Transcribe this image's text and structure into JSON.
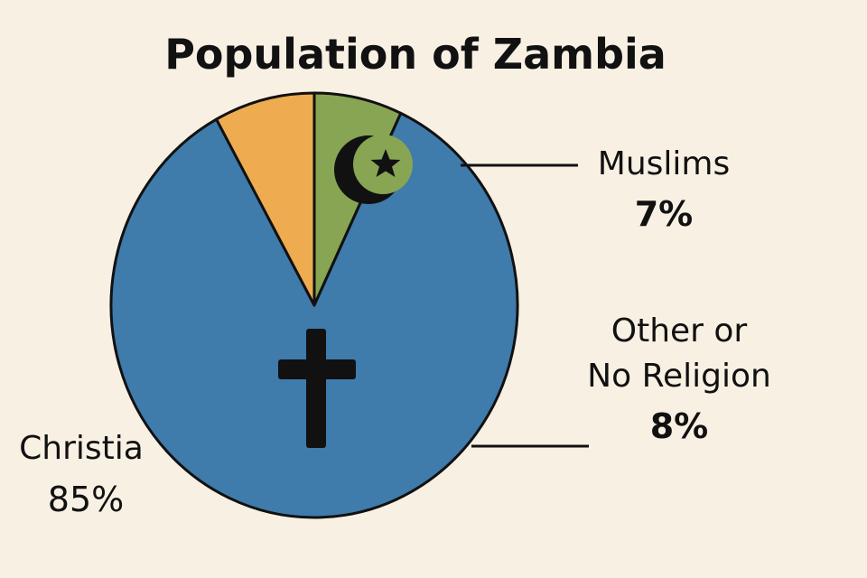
{
  "chart_data": {
    "type": "pie",
    "title": "Population of Zambia",
    "series": [
      {
        "name": "Christia",
        "value": 85,
        "label": "85%",
        "color": "#3f7bab",
        "icon": "cross-icon"
      },
      {
        "name": "Muslims",
        "value": 7,
        "label": "7%",
        "color": "#87a553",
        "icon": "crescent-star-icon"
      },
      {
        "name": "Other or No Religion",
        "value": 8,
        "label": "8%",
        "color": "#eeab50",
        "icon": ""
      }
    ],
    "labels": {
      "muslims_name": "Muslims",
      "muslims_value": "7%",
      "other_name_line1": "Other or",
      "other_name_line2": "No Religion",
      "other_value": "8%",
      "christian_name": "Christia",
      "christian_value": "85%"
    },
    "outline_color": "#111111",
    "background_color": "#f9f0e4"
  }
}
